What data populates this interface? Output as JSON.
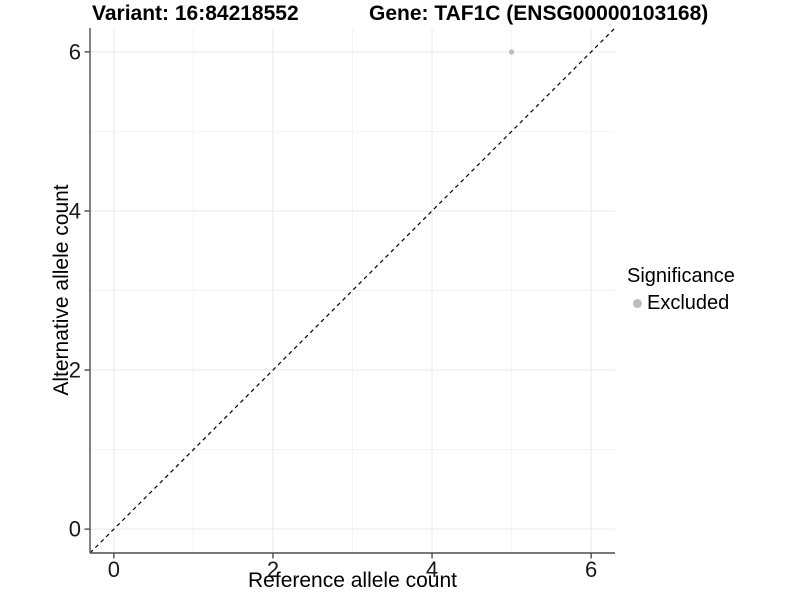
{
  "titles": {
    "variant": "Variant: 16:84218552",
    "gene": "Gene: TAF1C (ENSG00000103168)"
  },
  "axes": {
    "x_label": "Reference allele count",
    "y_label": "Alternative allele count",
    "x_tick_labels": [
      "0",
      "2",
      "4",
      "6"
    ],
    "y_tick_labels": [
      "0",
      "2",
      "4",
      "6"
    ]
  },
  "legend": {
    "title": "Significance",
    "items": [
      {
        "label": "Excluded",
        "color": "#bcbcbc"
      }
    ]
  },
  "colors": {
    "background": "#ffffff",
    "major_gridline": "#e9e9e9",
    "minor_gridline": "#f3f3f3",
    "axis_line": "#4d4d4d",
    "tick_label": "#1a1a1a",
    "reference_line": "#000000",
    "point_excluded": "#bcbcbc"
  },
  "chart_data": {
    "type": "scatter",
    "title": "Variant: 16:84218552 / Gene: TAF1C (ENSG00000103168)",
    "xlabel": "Reference allele count",
    "ylabel": "Alternative allele count",
    "xlim": [
      -0.3,
      6.3
    ],
    "ylim": [
      -0.3,
      6.3
    ],
    "x_ticks": [
      0,
      2,
      4,
      6
    ],
    "y_ticks": [
      0,
      2,
      4,
      6
    ],
    "x_minor_ticks": [
      1,
      3,
      5
    ],
    "y_minor_ticks": [
      1,
      3,
      5
    ],
    "grid": true,
    "legend_position": "right",
    "legend_title": "Significance",
    "series": [
      {
        "name": "Excluded",
        "color": "#bcbcbc",
        "points": [
          {
            "x": 5,
            "y": 6
          }
        ]
      }
    ],
    "reference_line": {
      "kind": "identity",
      "equation": "y = x",
      "style": "dashed",
      "color": "#000000"
    }
  }
}
